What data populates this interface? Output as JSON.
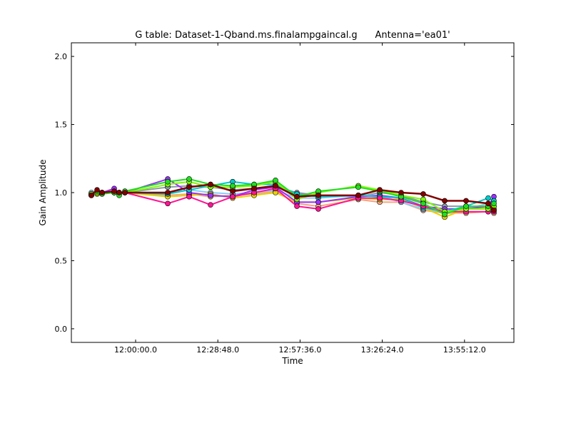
{
  "chart_data": {
    "type": "line",
    "title": "G table: Dataset-1-Qband.ms.finalampgaincal.g      Antenna='ea01'",
    "xlabel": "Time",
    "ylabel": "Gain Amplitude",
    "xlim_seconds": [
      41850,
      51150
    ],
    "ylim": [
      -0.1,
      2.1
    ],
    "x_ticks": [
      {
        "value": 43200,
        "label": "12:00:00.0"
      },
      {
        "value": 44928,
        "label": "12:28:48.0"
      },
      {
        "value": 46656,
        "label": "12:57:36.0"
      },
      {
        "value": 48384,
        "label": "13:26:24.0"
      },
      {
        "value": 50112,
        "label": "13:55:12.0"
      }
    ],
    "y_ticks": [
      {
        "value": 0.0,
        "label": "0.0"
      },
      {
        "value": 0.5,
        "label": "0.5"
      },
      {
        "value": 1.0,
        "label": "1.0"
      },
      {
        "value": 1.5,
        "label": "1.5"
      },
      {
        "value": 2.0,
        "label": "2.0"
      }
    ],
    "grid": false,
    "x_seconds": [
      42270,
      42390,
      42495,
      42750,
      42855,
      42975,
      43875,
      44325,
      44775,
      45240,
      45690,
      46140,
      46590,
      47040,
      47880,
      48330,
      48780,
      49245,
      49695,
      50145,
      50610,
      50730
    ],
    "series": [
      {
        "name": "salmon",
        "color": "#f4a582",
        "values": [
          0.99,
          1.0,
          1.0,
          1.0,
          1.0,
          1.0,
          0.98,
          0.99,
          0.97,
          0.98,
          0.99,
          1.01,
          0.92,
          0.9,
          0.95,
          0.93,
          0.93,
          0.87,
          0.85,
          0.85,
          0.86,
          0.85
        ]
      },
      {
        "name": "gray",
        "color": "#8a9aa8",
        "values": [
          0.98,
          1.0,
          1.0,
          1.0,
          1.0,
          1.0,
          1.04,
          1.05,
          1.04,
          1.02,
          1.03,
          1.04,
          1.0,
          0.98,
          0.97,
          1.0,
          0.98,
          0.93,
          0.9,
          0.9,
          0.88,
          0.87
        ]
      },
      {
        "name": "light-blue",
        "color": "#87cefa",
        "values": [
          1.0,
          1.0,
          1.0,
          1.0,
          1.0,
          1.0,
          1.0,
          1.02,
          1.0,
          0.99,
          1.0,
          1.02,
          0.96,
          0.96,
          0.98,
          0.98,
          0.93,
          0.88,
          0.86,
          0.88,
          0.92,
          0.9
        ]
      },
      {
        "name": "yellow",
        "color": "#e6d200",
        "values": [
          0.99,
          0.99,
          1.0,
          1.0,
          0.99,
          1.0,
          0.97,
          0.98,
          0.99,
          0.96,
          0.98,
          1.0,
          0.93,
          0.93,
          0.96,
          0.95,
          0.95,
          0.89,
          0.82,
          0.88,
          0.89,
          0.88
        ]
      },
      {
        "name": "purple",
        "color": "#9b30ff",
        "values": [
          0.98,
          1.0,
          1.0,
          1.03,
          1.0,
          1.0,
          1.1,
          1.0,
          0.98,
          0.97,
          1.02,
          1.04,
          0.93,
          0.93,
          0.97,
          0.98,
          0.96,
          0.9,
          0.88,
          0.88,
          0.9,
          0.97
        ]
      },
      {
        "name": "cyan",
        "color": "#00c8c8",
        "values": [
          0.98,
          1.0,
          1.0,
          1.0,
          1.0,
          1.0,
          0.99,
          1.02,
          1.05,
          1.08,
          1.06,
          1.06,
          0.99,
          0.97,
          0.98,
          0.97,
          0.96,
          0.89,
          0.86,
          0.9,
          0.96,
          0.94
        ]
      },
      {
        "name": "pink",
        "color": "#ff1493",
        "values": [
          0.99,
          1.0,
          1.0,
          1.0,
          1.0,
          1.0,
          0.92,
          0.97,
          0.91,
          0.97,
          1.0,
          1.03,
          0.9,
          0.88,
          0.96,
          0.96,
          0.94,
          0.9,
          0.86,
          0.86,
          0.86,
          0.86
        ]
      },
      {
        "name": "lime",
        "color": "#7cfc00",
        "values": [
          0.99,
          1.0,
          1.0,
          1.0,
          1.0,
          1.0,
          1.06,
          1.08,
          1.04,
          1.04,
          1.05,
          1.08,
          0.95,
          1.0,
          1.05,
          1.02,
          0.98,
          0.95,
          0.86,
          0.88,
          0.88,
          0.9
        ]
      },
      {
        "name": "green",
        "color": "#22dd22",
        "values": [
          0.98,
          1.01,
          0.99,
          1.0,
          0.98,
          1.01,
          1.08,
          1.1,
          1.06,
          1.05,
          1.06,
          1.09,
          0.97,
          1.01,
          1.04,
          1.01,
          0.97,
          0.92,
          0.84,
          0.9,
          0.9,
          0.92
        ]
      },
      {
        "name": "dark-red",
        "color": "#800000",
        "values": [
          0.98,
          1.02,
          1.0,
          1.01,
          1.0,
          1.0,
          1.0,
          1.04,
          1.06,
          1.01,
          1.03,
          1.05,
          0.97,
          0.98,
          0.98,
          1.02,
          1.0,
          0.99,
          0.94,
          0.94,
          0.92,
          0.87
        ]
      }
    ]
  }
}
